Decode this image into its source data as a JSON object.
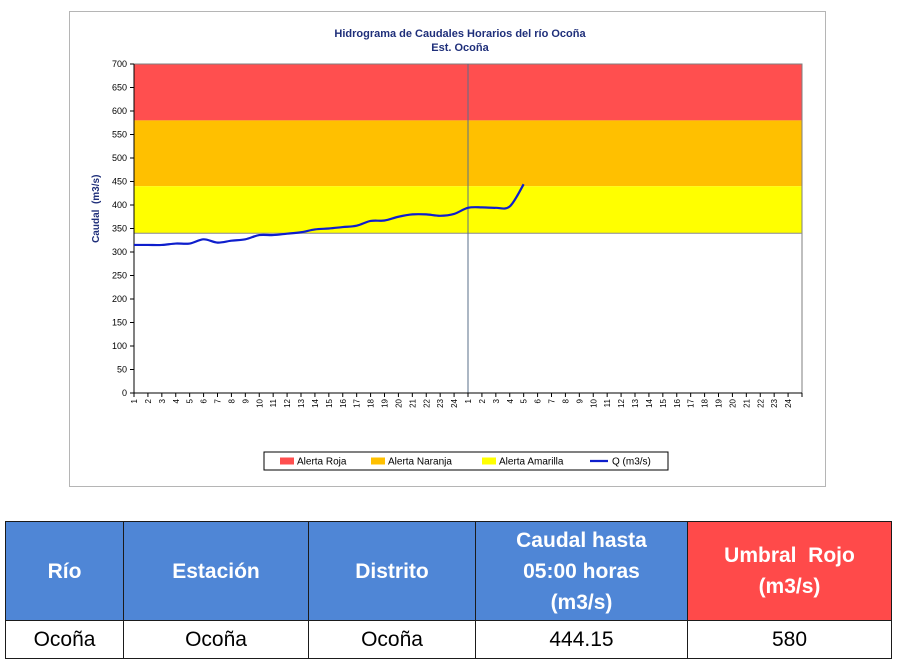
{
  "chart_data": {
    "type": "line",
    "title": "Hidrograma de Caudales Horarios del río Ocoña",
    "subtitle": "Est. Ocoña",
    "ylabel": "Caudal  (m3/s)",
    "xlabel": "",
    "ylim": [
      0,
      700
    ],
    "yticks": [
      0,
      50,
      100,
      150,
      200,
      250,
      300,
      350,
      400,
      450,
      500,
      550,
      600,
      650,
      700
    ],
    "x_labels": [
      "1",
      "2",
      "3",
      "4",
      "5",
      "6",
      "7",
      "8",
      "9",
      "10",
      "11",
      "12",
      "13",
      "14",
      "15",
      "16",
      "17",
      "18",
      "19",
      "20",
      "21",
      "22",
      "23",
      "24",
      "1",
      "2",
      "3",
      "4",
      "5",
      "6",
      "7",
      "8",
      "9",
      "10",
      "11",
      "12",
      "13",
      "14",
      "15",
      "16",
      "17",
      "18",
      "19",
      "20",
      "21",
      "22",
      "23",
      "24"
    ],
    "bands": [
      {
        "name": "Alerta Roja",
        "from": 580,
        "to": 700,
        "color": "#ff4f4f"
      },
      {
        "name": "Alerta Naranja",
        "from": 440,
        "to": 580,
        "color": "#ffc000"
      },
      {
        "name": "Alerta Amarilla",
        "from": 340,
        "to": 440,
        "color": "#ffff00"
      }
    ],
    "series": [
      {
        "name": "Q (m3/s)",
        "color": "#0e1ecc",
        "values": [
          315,
          315,
          315,
          318,
          318,
          327,
          320,
          324,
          327,
          336,
          336,
          339,
          342,
          348,
          350,
          353,
          356,
          366,
          367,
          375,
          380,
          380,
          377,
          381,
          394,
          395,
          394,
          397,
          444.15
        ]
      }
    ],
    "legend_position": "bottom",
    "divider_after_index": 23
  },
  "table": {
    "headers": [
      {
        "text": "Río",
        "lines": [
          "Río"
        ]
      },
      {
        "text": "Estación",
        "lines": [
          "Estación"
        ]
      },
      {
        "text": "Distrito",
        "lines": [
          "Distrito"
        ]
      },
      {
        "text": "Caudal hasta 05:00 horas (m3/s)",
        "lines": [
          "Caudal hasta",
          "05:00 horas",
          "(m3/s)"
        ]
      },
      {
        "text": "Umbral  Rojo (m3/s)",
        "lines": [
          "Umbral  Rojo",
          "(m3/s)"
        ]
      }
    ],
    "row": [
      "Ocoña",
      "Ocoña",
      "Ocoña",
      "444.15",
      "580"
    ]
  }
}
